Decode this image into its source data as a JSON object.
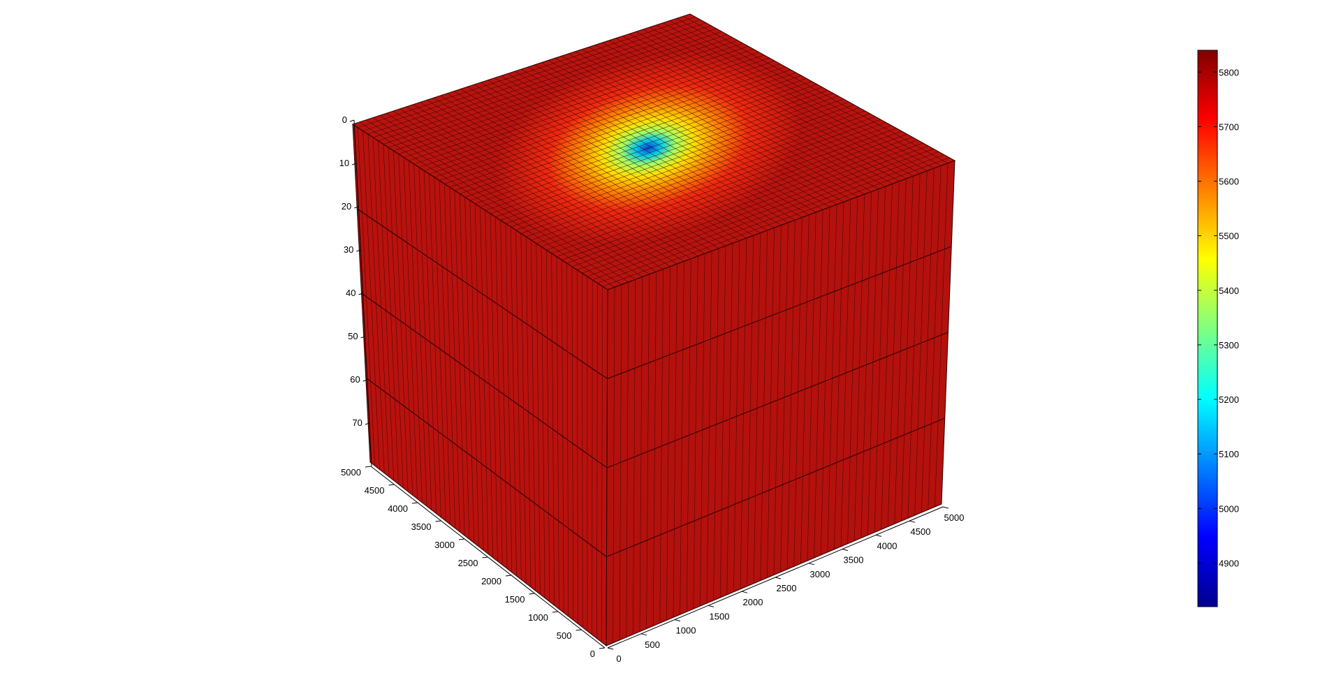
{
  "chart_data": {
    "type": "3d-block",
    "title": "",
    "colormap": "jet",
    "colormap_stops": [
      "#00008f",
      "#0000ff",
      "#0080ff",
      "#00ffff",
      "#80ff80",
      "#ffff00",
      "#ff8000",
      "#ff0000",
      "#800000"
    ],
    "block_fill": "#b8120e",
    "grid_line_color": "#2a0000",
    "z_axis": {
      "label": "",
      "reversed": true,
      "range": [
        0,
        80
      ],
      "ticks": [
        0,
        10,
        20,
        30,
        40,
        50,
        60,
        70
      ]
    },
    "y_axis": {
      "label": "",
      "range": [
        0,
        5000
      ],
      "ticks": [
        0,
        500,
        1000,
        1500,
        2000,
        2500,
        3000,
        3500,
        4000,
        4500,
        5000
      ]
    },
    "x_axis": {
      "label": "",
      "range": [
        0,
        5000
      ],
      "ticks": [
        0,
        500,
        1000,
        1500,
        2000,
        2500,
        3000,
        3500,
        4000,
        4500,
        5000
      ]
    },
    "grid_cells": {
      "x": 50,
      "y": 50,
      "z_layers": 4
    },
    "anomaly": {
      "type": "low-value well on top surface",
      "x": 2500,
      "y": 2500,
      "min_value": 4820,
      "background_value": 5840
    },
    "colorbar": {
      "range": [
        4820,
        5840
      ],
      "ticks": [
        4900,
        5000,
        5100,
        5200,
        5300,
        5400,
        5500,
        5600,
        5700,
        5800
      ]
    }
  }
}
